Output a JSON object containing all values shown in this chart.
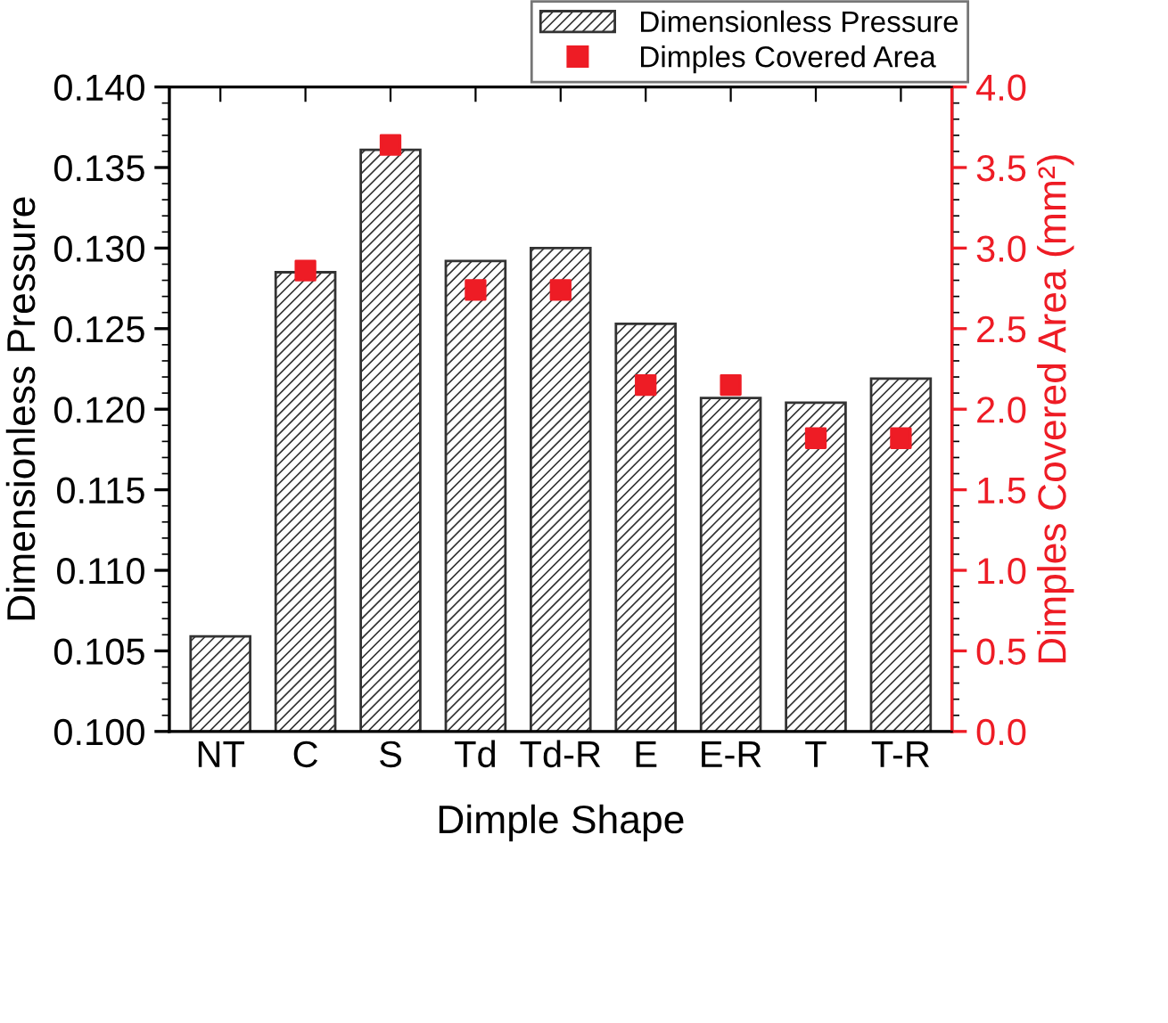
{
  "chart_data": {
    "type": "bar",
    "xlabel": "Dimple Shape",
    "ylabel": "Dimensionless Pressure",
    "y2label": "Dimples Covered Area (mm²)",
    "categories": [
      "NT",
      "C",
      "S",
      "Td",
      "Td-R",
      "E",
      "E-R",
      "T",
      "T-R"
    ],
    "series": [
      {
        "name": "Dimensionless Pressure",
        "color": "#333333",
        "values": [
          0.1059,
          0.1285,
          0.1361,
          0.1292,
          0.13,
          0.1253,
          0.1207,
          0.1204,
          0.1219
        ]
      },
      {
        "name": "Dimples Covered Area",
        "type": "scatter",
        "axis": "y2",
        "color": "#ee1c25",
        "marker": "square",
        "values": [
          null,
          2.86,
          3.64,
          2.74,
          2.74,
          2.15,
          2.15,
          1.82,
          1.82
        ]
      }
    ],
    "ylim": [
      0.1,
      0.14
    ],
    "yticks": [
      {
        "value": 0.1,
        "label": "0.100"
      },
      {
        "value": 0.105,
        "label": "0.105"
      },
      {
        "value": 0.11,
        "label": "0.110"
      },
      {
        "value": 0.115,
        "label": "0.115"
      },
      {
        "value": 0.12,
        "label": "0.120"
      },
      {
        "value": 0.125,
        "label": "0.125"
      },
      {
        "value": 0.13,
        "label": "0.130"
      },
      {
        "value": 0.135,
        "label": "0.135"
      },
      {
        "value": 0.14,
        "label": "0.140"
      }
    ],
    "y2lim": [
      0,
      4
    ],
    "y2ticks": [
      {
        "value": 0,
        "label": "0.0"
      },
      {
        "value": 0.5,
        "label": "0.5"
      },
      {
        "value": 1,
        "label": "1.0"
      },
      {
        "value": 1.5,
        "label": "1.5"
      },
      {
        "value": 2,
        "label": "2.0"
      },
      {
        "value": 2.5,
        "label": "2.5"
      },
      {
        "value": 3,
        "label": "3.0"
      },
      {
        "value": 3.5,
        "label": "3.5"
      },
      {
        "value": 4,
        "label": "4.0"
      }
    ],
    "grid": false,
    "legend": "top right"
  }
}
